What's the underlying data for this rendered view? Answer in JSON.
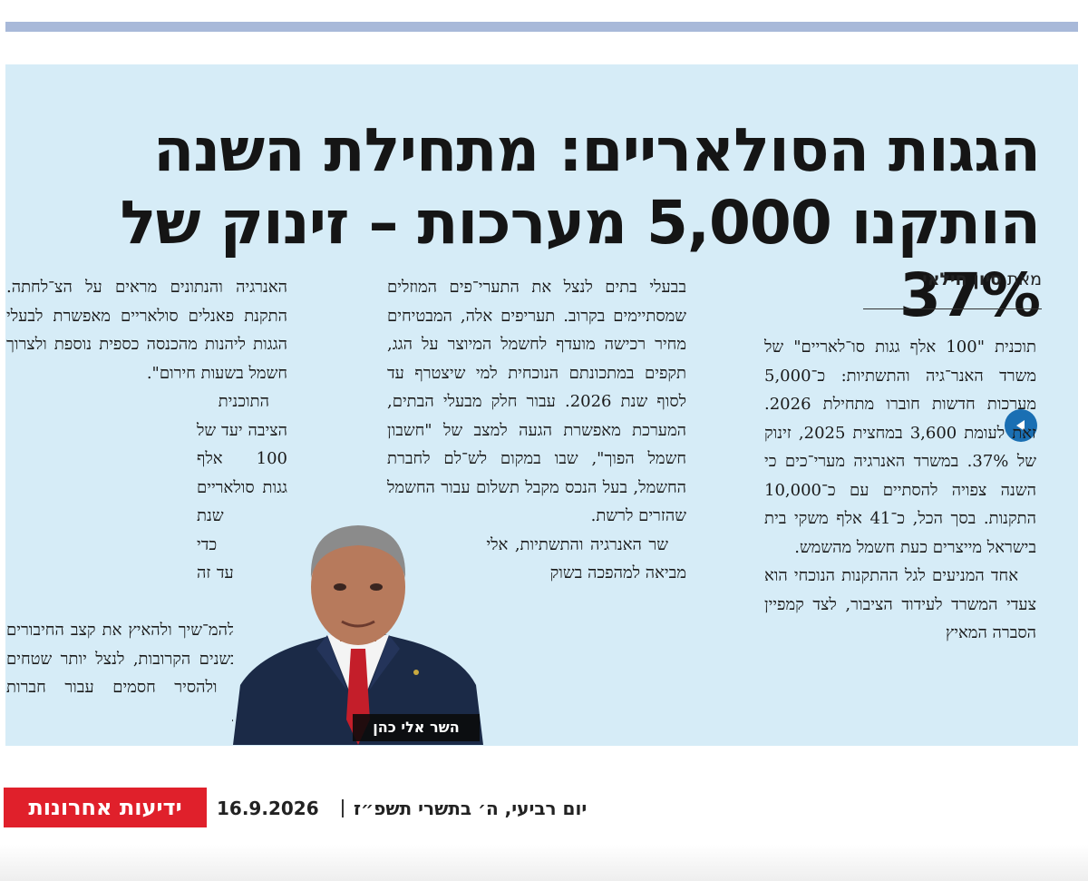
{
  "headline": "הגגות הסולאריים: מתחילת השנה הותקנו 5,000 מערכות – זינוק של 37%",
  "byline": {
    "prefix": "מאת",
    "author": "סיון חילאי"
  },
  "columns": {
    "right": [
      "תוכנית \"100 אלף גגות סו־לאריים\" של משרד האנר־גיה והתשתיות: כ־5,000 מערכות חדשות חוברו מתחילת 2026. זאת לעומת 3,600 במחצית 2025, זינוק של 37%. במשרד האנרגיה מערי־כים כי השנה צפויה להסתיים עם כ־10,000 התקנות. בסך הכל, כ־41 אלף משקי בית בישראל מייצרים כעת חשמל מהשמש.",
      "אחד המניעים לגל ההתקנות הנוכחי הוא צעדי המשרד לעידוד הציבור, לצד קמפיין הסברה המאיץ"
    ],
    "middle": [
      "בבעלי בתים לנצל את התערי־פים המוזלים שמסתיימים בקרוב. תעריפים אלה, המבטיחים מחיר רכישה מועדף לחשמל המיוצר על הגג, תקפים במתכונתם הנוכחית למי שיצטרף עד לסוף שנת 2026. עבור חלק מבעלי הבתים, המערכת מאפשרת הגעה למצב של \"חשבון חשמל הפוך\", שבו במקום לש־לם לחברת החשמל, בעל הנכס מקבל תשלום עבור החשמל שהזרים לרשת.",
      "שר האנרגיה והתשתיות, אלי כהן: \"התוכנית מביאה למהפכה בשוק"
    ],
    "left": [
      "האנרגיה והנתונים מראים על הצ־לחתה. התקנת פאנלים סולאריים מאפשרת לבעלי הגגות ליהנות מהכנסה כספית נוספת ולצרוך חשמל בשעות חירום\".",
      "התוכנית הציבה יעד של 100 אלף גגות סולאריים עד שנת 2030. כדי להגיע ליעד זה תצטרך המדינה להמ־שיך ולהאיץ את קצב החיבורים השנתי בשנים הקרובות, לנצל יותר שטחים ציבוריים ולהסיר חסמים עבור חברות האנרגיה."
    ]
  },
  "photo": {
    "caption": "השר אלי כהן"
  },
  "footer": {
    "masthead": "ידיעות אחרונות",
    "date": "16.9.2026",
    "hebrew_date": "יום רביעי, ה׳ בתשרי תשפ״ז"
  },
  "colors": {
    "clip_background": "#d6ecf7",
    "masthead_red": "#e0202b",
    "top_bar": "#a8b9d9",
    "play_button": "#1a6fb3"
  },
  "icons": {
    "play_button": "play-left-icon"
  }
}
